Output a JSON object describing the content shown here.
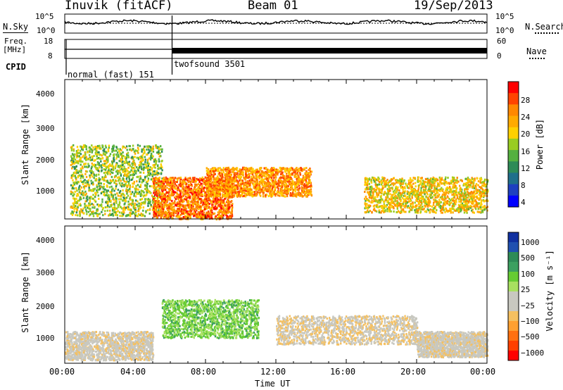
{
  "header": {
    "station": "Inuvik (fitACF)",
    "beam": "Beam 01",
    "date": "19/Sep/2013"
  },
  "strips": {
    "nsky": {
      "label": "N.Sky",
      "ticks_left": [
        "10^5",
        "10^0"
      ],
      "ticks_right": [
        "10^5",
        "10^0"
      ],
      "right_label": "N.Search"
    },
    "freq": {
      "label_line1": "Freq.",
      "label_line2": "[MHz]",
      "ticks_left": [
        "18",
        "8"
      ],
      "ticks_right": [
        "60",
        "0"
      ],
      "right_label": "Nave"
    },
    "cpid": {
      "label": "CPID",
      "segments": [
        {
          "name": "normal (fast) 151",
          "start_hour": 0.0,
          "end_hour": 6.1
        },
        {
          "name": "twofsound 3501",
          "start_hour": 6.1,
          "end_hour": 24.0
        }
      ]
    }
  },
  "panels": {
    "power": {
      "ylabel": "Slant Range [km]",
      "colorbar_label": "Power [dB]",
      "colorbar_ticks": [
        "28",
        "24",
        "20",
        "16",
        "12",
        "8",
        "4"
      ],
      "colorbar_colors": [
        "#ff0000",
        "#ff4400",
        "#ff8800",
        "#ffaa00",
        "#ffd000",
        "#99cc22",
        "#55b040",
        "#2e8b57",
        "#1f6f8b",
        "#1e40c0",
        "#0000ff"
      ]
    },
    "velocity": {
      "ylabel": "Slant Range [km]",
      "colorbar_label": "Velocity [m s⁻¹]",
      "colorbar_ticks": [
        "1000",
        "500",
        "100",
        "25",
        "−25",
        "−100",
        "−500",
        "−1000"
      ],
      "colorbar_colors": [
        "#1030a0",
        "#2050b0",
        "#2e8b57",
        "#3ca060",
        "#66cc33",
        "#a8e060",
        "#c8c8c0",
        "#c8c8c0",
        "#f5c060",
        "#ffa030",
        "#ff7010",
        "#ff4000",
        "#ff0000"
      ]
    }
  },
  "axes": {
    "yticks": [
      "4000",
      "3000",
      "2000",
      "1000"
    ],
    "xticks": [
      "00:00",
      "04:00",
      "08:00",
      "12:00",
      "16:00",
      "20:00",
      "00:00"
    ],
    "xlabel": "Time UT"
  },
  "chart_data": [
    {
      "type": "heatmap",
      "title": "Beam 01",
      "xlabel": "Time UT",
      "ylabel": "Slant Range [km]",
      "x_range_hours": [
        0,
        24
      ],
      "ylim": [
        180,
        4500
      ],
      "colorbar": "Power [dB]",
      "colorbar_range": [
        0,
        32
      ],
      "regions": [
        {
          "start_hour": 0.3,
          "end_hour": 5.5,
          "range_km": [
            300,
            2500
          ],
          "level": 16
        },
        {
          "start_hour": 5.0,
          "end_hour": 9.5,
          "range_km": [
            200,
            1500
          ],
          "level": 26
        },
        {
          "start_hour": 8.0,
          "end_hour": 14.0,
          "range_km": [
            900,
            1800
          ],
          "level": 24
        },
        {
          "start_hour": 17.0,
          "end_hour": 24.0,
          "range_km": [
            400,
            1500
          ],
          "level": 20
        }
      ]
    },
    {
      "type": "heatmap",
      "title": "Beam 01",
      "xlabel": "Time UT",
      "ylabel": "Slant Range [km]",
      "x_range_hours": [
        0,
        24
      ],
      "ylim": [
        180,
        4500
      ],
      "colorbar": "Velocity [m s⁻¹]",
      "colorbar_range": [
        -1000,
        1000
      ],
      "regions": [
        {
          "start_hour": 0.0,
          "end_hour": 5.0,
          "range_km": [
            300,
            1200
          ],
          "velocity": -150
        },
        {
          "start_hour": 5.5,
          "end_hour": 11.0,
          "range_km": [
            1000,
            2200
          ],
          "velocity": 300
        },
        {
          "start_hour": 12.0,
          "end_hour": 20.0,
          "range_km": [
            800,
            1700
          ],
          "velocity": -200
        },
        {
          "start_hour": 20.0,
          "end_hour": 24.0,
          "range_km": [
            400,
            1200
          ],
          "velocity": -150
        }
      ]
    }
  ]
}
